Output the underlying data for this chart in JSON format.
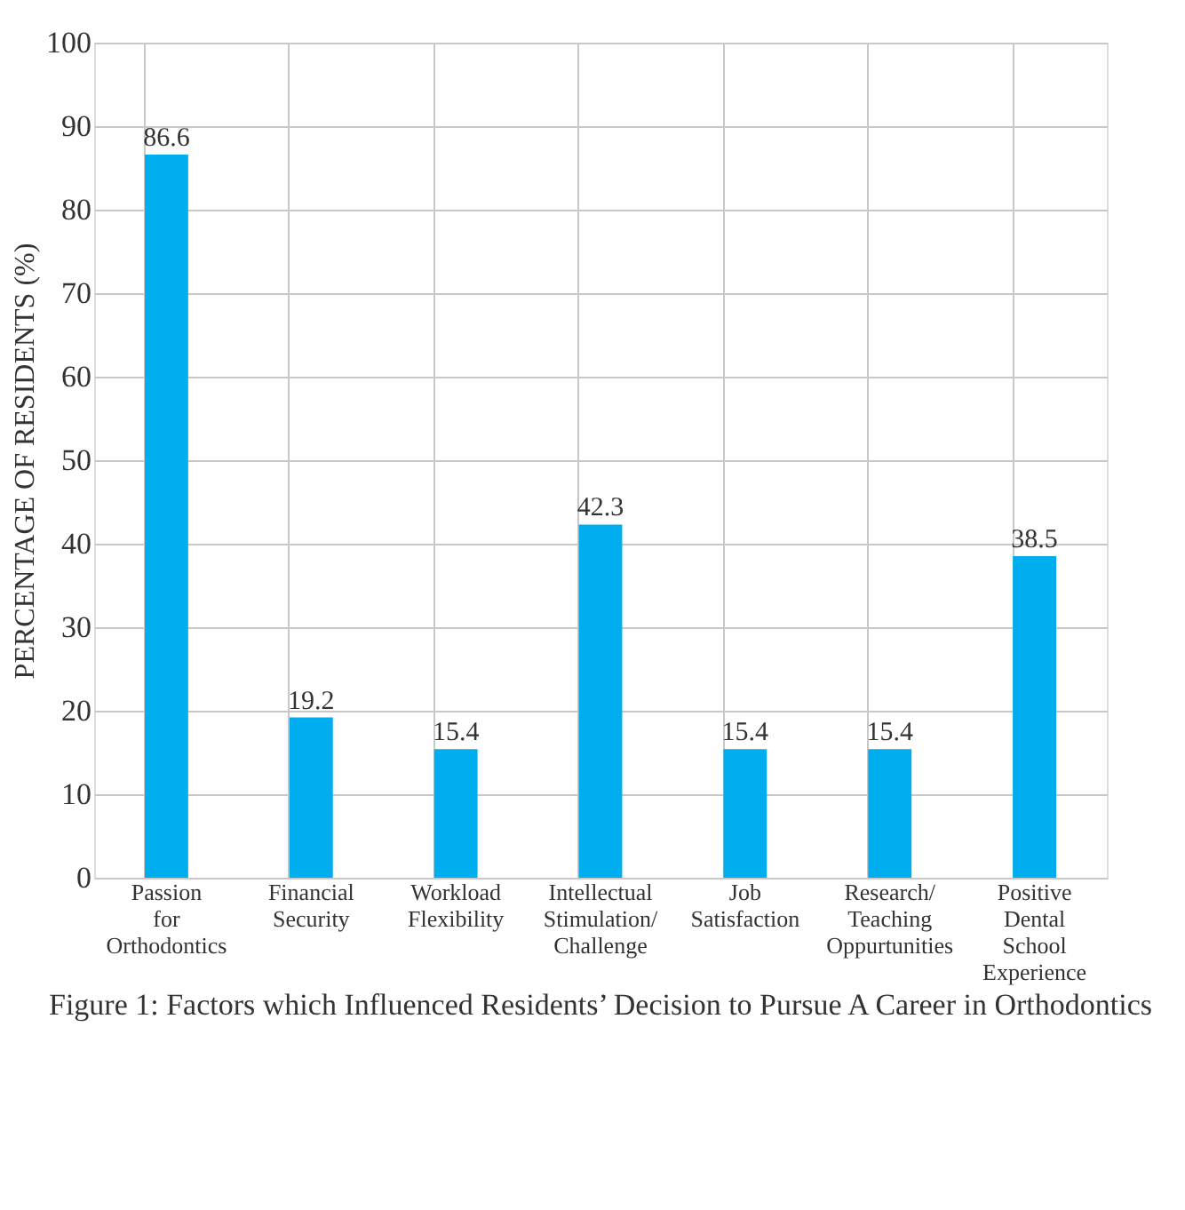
{
  "chart_data": {
    "type": "bar",
    "title": "Figure 1: Factors which Influenced Residents’ Decision to Pursue A Career in Orthodontics",
    "ylabel": "PERCENTAGE OF RESIDENTS (%)",
    "categories": [
      "Passion for Orthodontics",
      "Financial Security",
      "Workload Flexibility",
      "Intellectual Stimulation/ Challenge",
      "Job Satisfaction",
      "Research/ Teaching Oppurtunities",
      "Positive Dental School Experience"
    ],
    "values": [
      86.6,
      19.2,
      15.4,
      42.3,
      15.4,
      15.4,
      38.5
    ],
    "color": "#00aeef",
    "ylim": [
      0,
      100
    ],
    "yticks": [
      0,
      10,
      20,
      30,
      40,
      50,
      60,
      70,
      80,
      90,
      100
    ],
    "grid": true,
    "data_labels": true
  }
}
